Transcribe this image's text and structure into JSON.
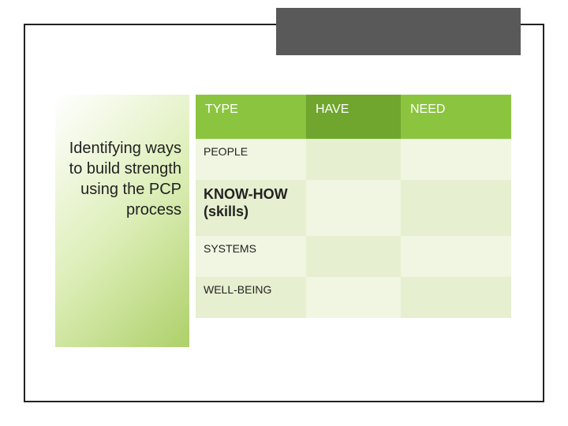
{
  "colors": {
    "header_green": "#8bc53f",
    "header_green_dark": "#70a52e",
    "row_light": "#f1f6e2",
    "row_alt": "#e6efcf",
    "title_box": "#595959",
    "frame_border": "#222222"
  },
  "heading": "Identifying ways to build strength using the PCP process",
  "table": {
    "headers": [
      "TYPE",
      "HAVE",
      "NEED"
    ],
    "rows": [
      {
        "type": "PEOPLE",
        "have": "",
        "need": "",
        "bold": false
      },
      {
        "type": "KNOW-HOW (skills)",
        "have": "",
        "need": "",
        "bold": true
      },
      {
        "type": "SYSTEMS",
        "have": "",
        "need": "",
        "bold": false
      },
      {
        "type": "WELL-BEING",
        "have": "",
        "need": "",
        "bold": false
      }
    ]
  }
}
